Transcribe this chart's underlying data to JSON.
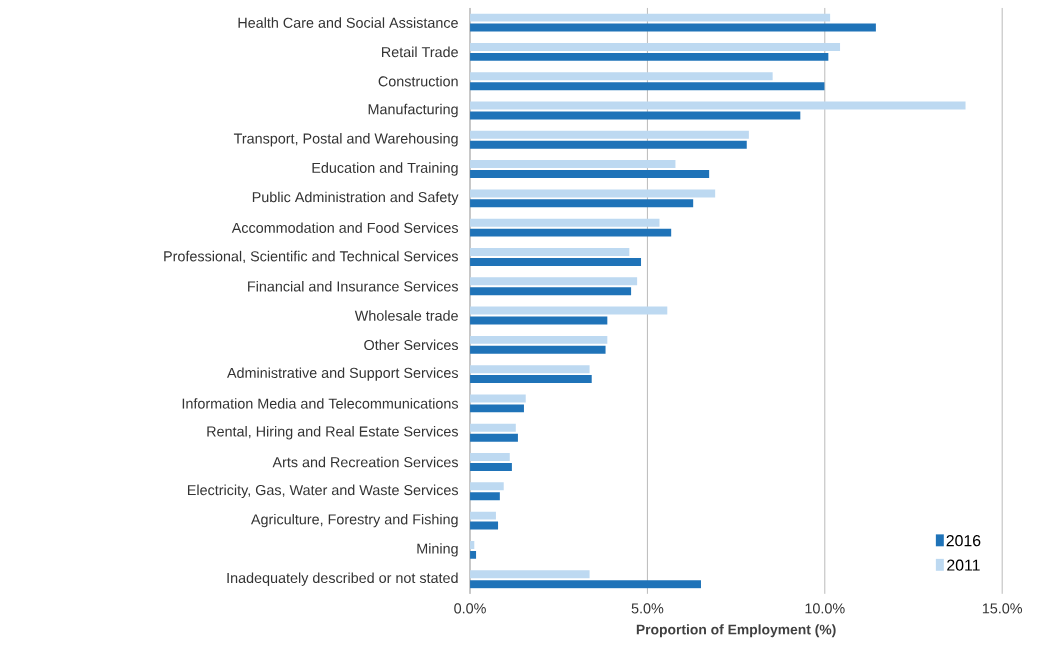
{
  "chart_data": {
    "type": "bar",
    "orientation": "horizontal",
    "xlabel": "Proportion of Employment (%)",
    "categories": [
      "Health Care and Social Assistance",
      "Retail Trade",
      "Construction",
      "Manufacturing",
      "Transport, Postal and Warehousing",
      "Education and Training",
      "Public Administration and Safety",
      "Accommodation and Food Services",
      "Professional, Scientific and Technical Services",
      "Financial and Insurance Services",
      "Wholesale trade",
      "Other Services",
      "Administrative and Support Services",
      "Information Media and Telecommunications",
      "Rental, Hiring and Real Estate Services",
      "Arts and Recreation Services",
      "Electricity, Gas, Water and Waste Services",
      "Agriculture, Forestry and Fishing",
      "Mining",
      "Inadequately described or not stated"
    ],
    "series": [
      {
        "name": "2016",
        "color": "#1f73b8",
        "values": [
          11.44,
          10.1,
          9.99,
          9.31,
          7.8,
          6.74,
          6.29,
          5.67,
          4.82,
          4.54,
          3.87,
          3.82,
          3.43,
          1.52,
          1.35,
          1.18,
          0.84,
          0.79,
          0.17,
          6.51
        ]
      },
      {
        "name": "2011",
        "color": "#bdd9f1",
        "values": [
          10.15,
          10.43,
          8.53,
          13.97,
          7.86,
          5.79,
          6.91,
          5.34,
          4.49,
          4.71,
          5.56,
          3.87,
          3.37,
          1.57,
          1.29,
          1.12,
          0.95,
          0.73,
          0.12,
          3.37
        ]
      }
    ],
    "xlim": [
      0,
      15
    ],
    "xticks": [
      {
        "value": 0,
        "label": "0.0%"
      },
      {
        "value": 5,
        "label": "5.0%"
      },
      {
        "value": 10,
        "label": "10.0%"
      },
      {
        "value": 15,
        "label": "15.0%"
      }
    ],
    "grid": "x",
    "legend": "bottom right"
  }
}
